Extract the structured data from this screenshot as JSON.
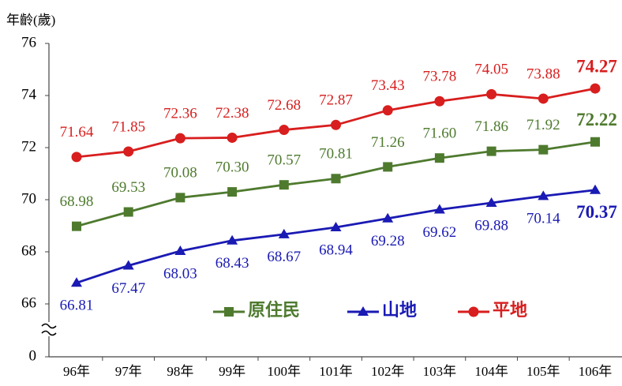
{
  "chart_data": {
    "type": "line",
    "y_axis_label": "年齡(歲)",
    "categories": [
      "96年",
      "97年",
      "98年",
      "99年",
      "100年",
      "101年",
      "102年",
      "103年",
      "104年",
      "105年",
      "106年"
    ],
    "series": [
      {
        "name": "原住民",
        "color": "#4e7a2e",
        "marker": "square",
        "label_position": "above",
        "values": [
          68.98,
          69.53,
          70.08,
          70.3,
          70.57,
          70.81,
          71.26,
          71.6,
          71.86,
          71.92,
          72.22
        ],
        "value_labels": [
          "68.98",
          "69.53",
          "70.08",
          "70.30",
          "70.57",
          "70.81",
          "71.26",
          "71.60",
          "71.86",
          "71.92",
          "72.22"
        ]
      },
      {
        "name": "山地",
        "color": "#1a1ab4",
        "marker": "triangle",
        "label_position": "below",
        "values": [
          66.81,
          67.47,
          68.03,
          68.43,
          68.67,
          68.94,
          69.28,
          69.62,
          69.88,
          70.14,
          70.37
        ]
      },
      {
        "name": "平地",
        "color": "#d81e1e",
        "marker": "circle",
        "label_position": "above",
        "values": [
          71.64,
          71.85,
          72.36,
          72.38,
          72.68,
          72.87,
          73.43,
          73.78,
          74.05,
          73.88,
          74.27
        ]
      }
    ],
    "ylim": [
      0,
      76
    ],
    "axis_break": [
      0,
      66
    ],
    "yticks": [
      0,
      66,
      68,
      70,
      72,
      74,
      76
    ]
  }
}
